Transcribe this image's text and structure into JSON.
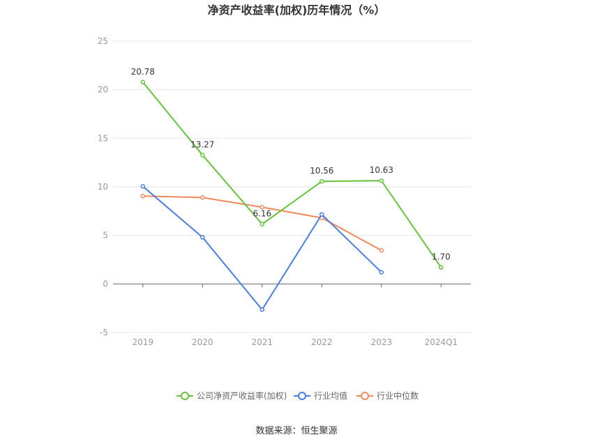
{
  "chart_data": {
    "type": "line",
    "title": "净资产收益率(加权)历年情况（%）",
    "categories": [
      "2019",
      "2020",
      "2021",
      "2022",
      "2023",
      "2024Q1"
    ],
    "ylim": [
      -5,
      25
    ],
    "yticks": [
      "25",
      "20",
      "15",
      "10",
      "5",
      "0",
      "-5"
    ],
    "grid": true,
    "legend_position": "bottom",
    "series": [
      {
        "name": "公司净资产收益率(加权)",
        "color": "#66c23a",
        "values": [
          20.78,
          13.27,
          6.16,
          10.56,
          10.63,
          1.7
        ],
        "labels": [
          "20.78",
          "13.27",
          "6.16",
          "10.56",
          "10.63",
          "1.70"
        ]
      },
      {
        "name": "行业均值",
        "color": "#4a7ee0",
        "values": [
          10.05,
          4.8,
          -2.65,
          7.15,
          1.2,
          null
        ]
      },
      {
        "name": "行业中位数",
        "color": "#f08a5d",
        "values": [
          9.05,
          8.9,
          7.9,
          6.8,
          3.45,
          null
        ]
      }
    ]
  },
  "source": "数据来源：恒生聚源"
}
